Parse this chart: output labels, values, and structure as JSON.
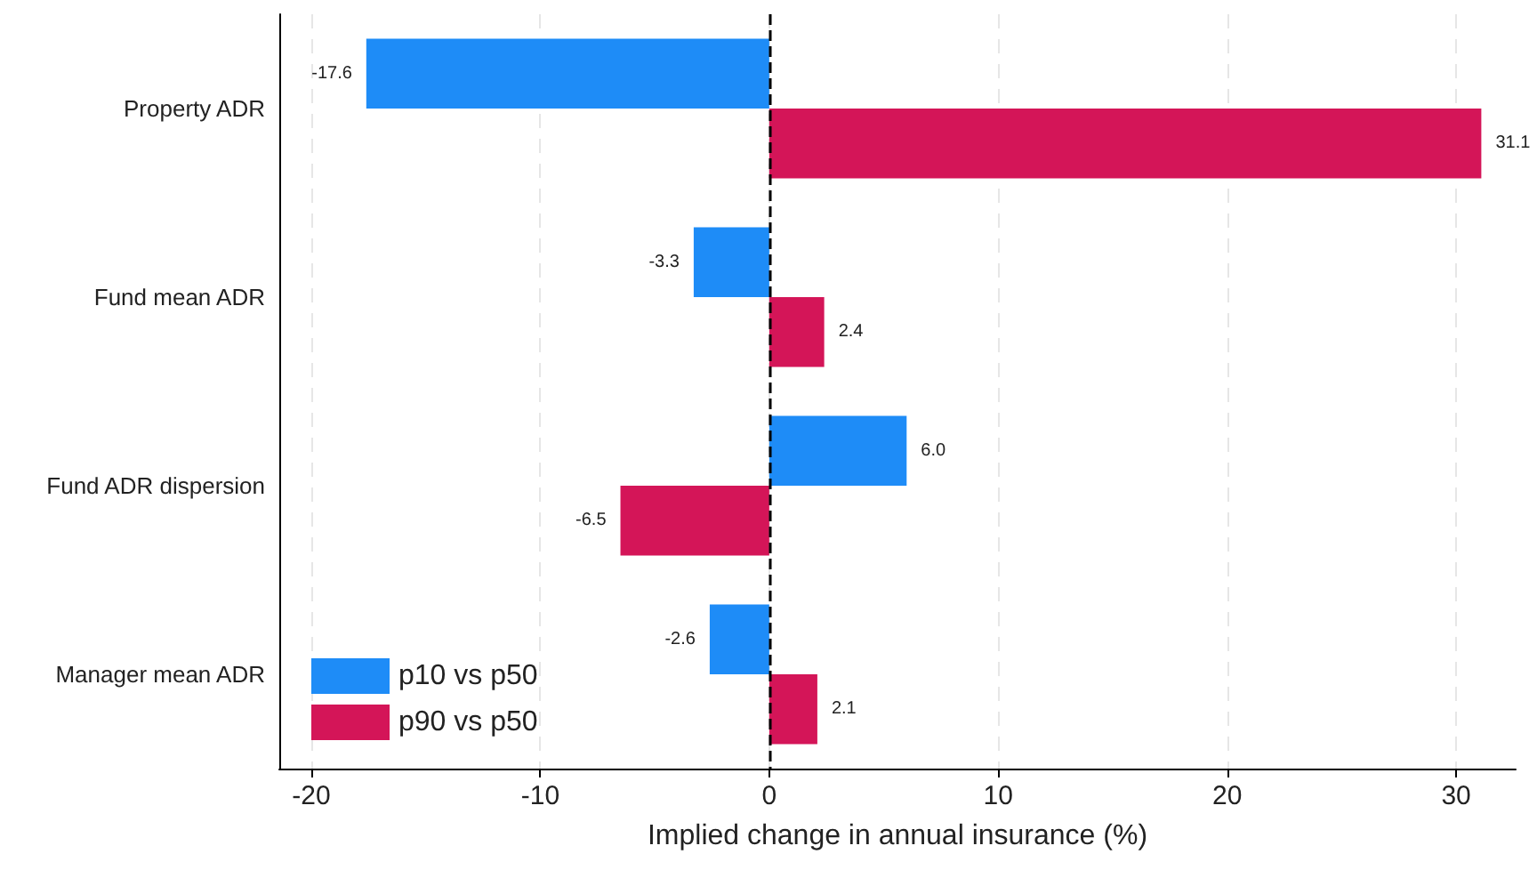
{
  "chart_data": {
    "type": "bar",
    "orientation": "horizontal",
    "xlabel": "Implied change in annual insurance (%)",
    "categories": [
      "Property ADR",
      "Fund mean ADR",
      "Fund ADR dispersion",
      "Manager mean ADR"
    ],
    "series": [
      {
        "name": "p10 vs p50",
        "color": "#1e8cf7",
        "values": [
          -17.6,
          -3.3,
          6.0,
          -2.6
        ],
        "value_labels": [
          "-17.6",
          "-3.3",
          "6.0",
          "-2.6"
        ]
      },
      {
        "name": "p90 vs p50",
        "color": "#d41558",
        "values": [
          31.1,
          2.4,
          -6.5,
          2.1
        ],
        "value_labels": [
          "31.1",
          "2.4",
          "-6.5",
          "2.1"
        ]
      }
    ],
    "xlim": [
      -21.4,
      32.6
    ],
    "xticks": [
      -20,
      -10,
      0,
      10,
      20,
      30
    ],
    "grid": "x",
    "legend": "bottom left",
    "ref_lines": [
      {
        "axis": "x",
        "value": 0,
        "color": "#000000",
        "line_style": "dashed"
      }
    ]
  }
}
